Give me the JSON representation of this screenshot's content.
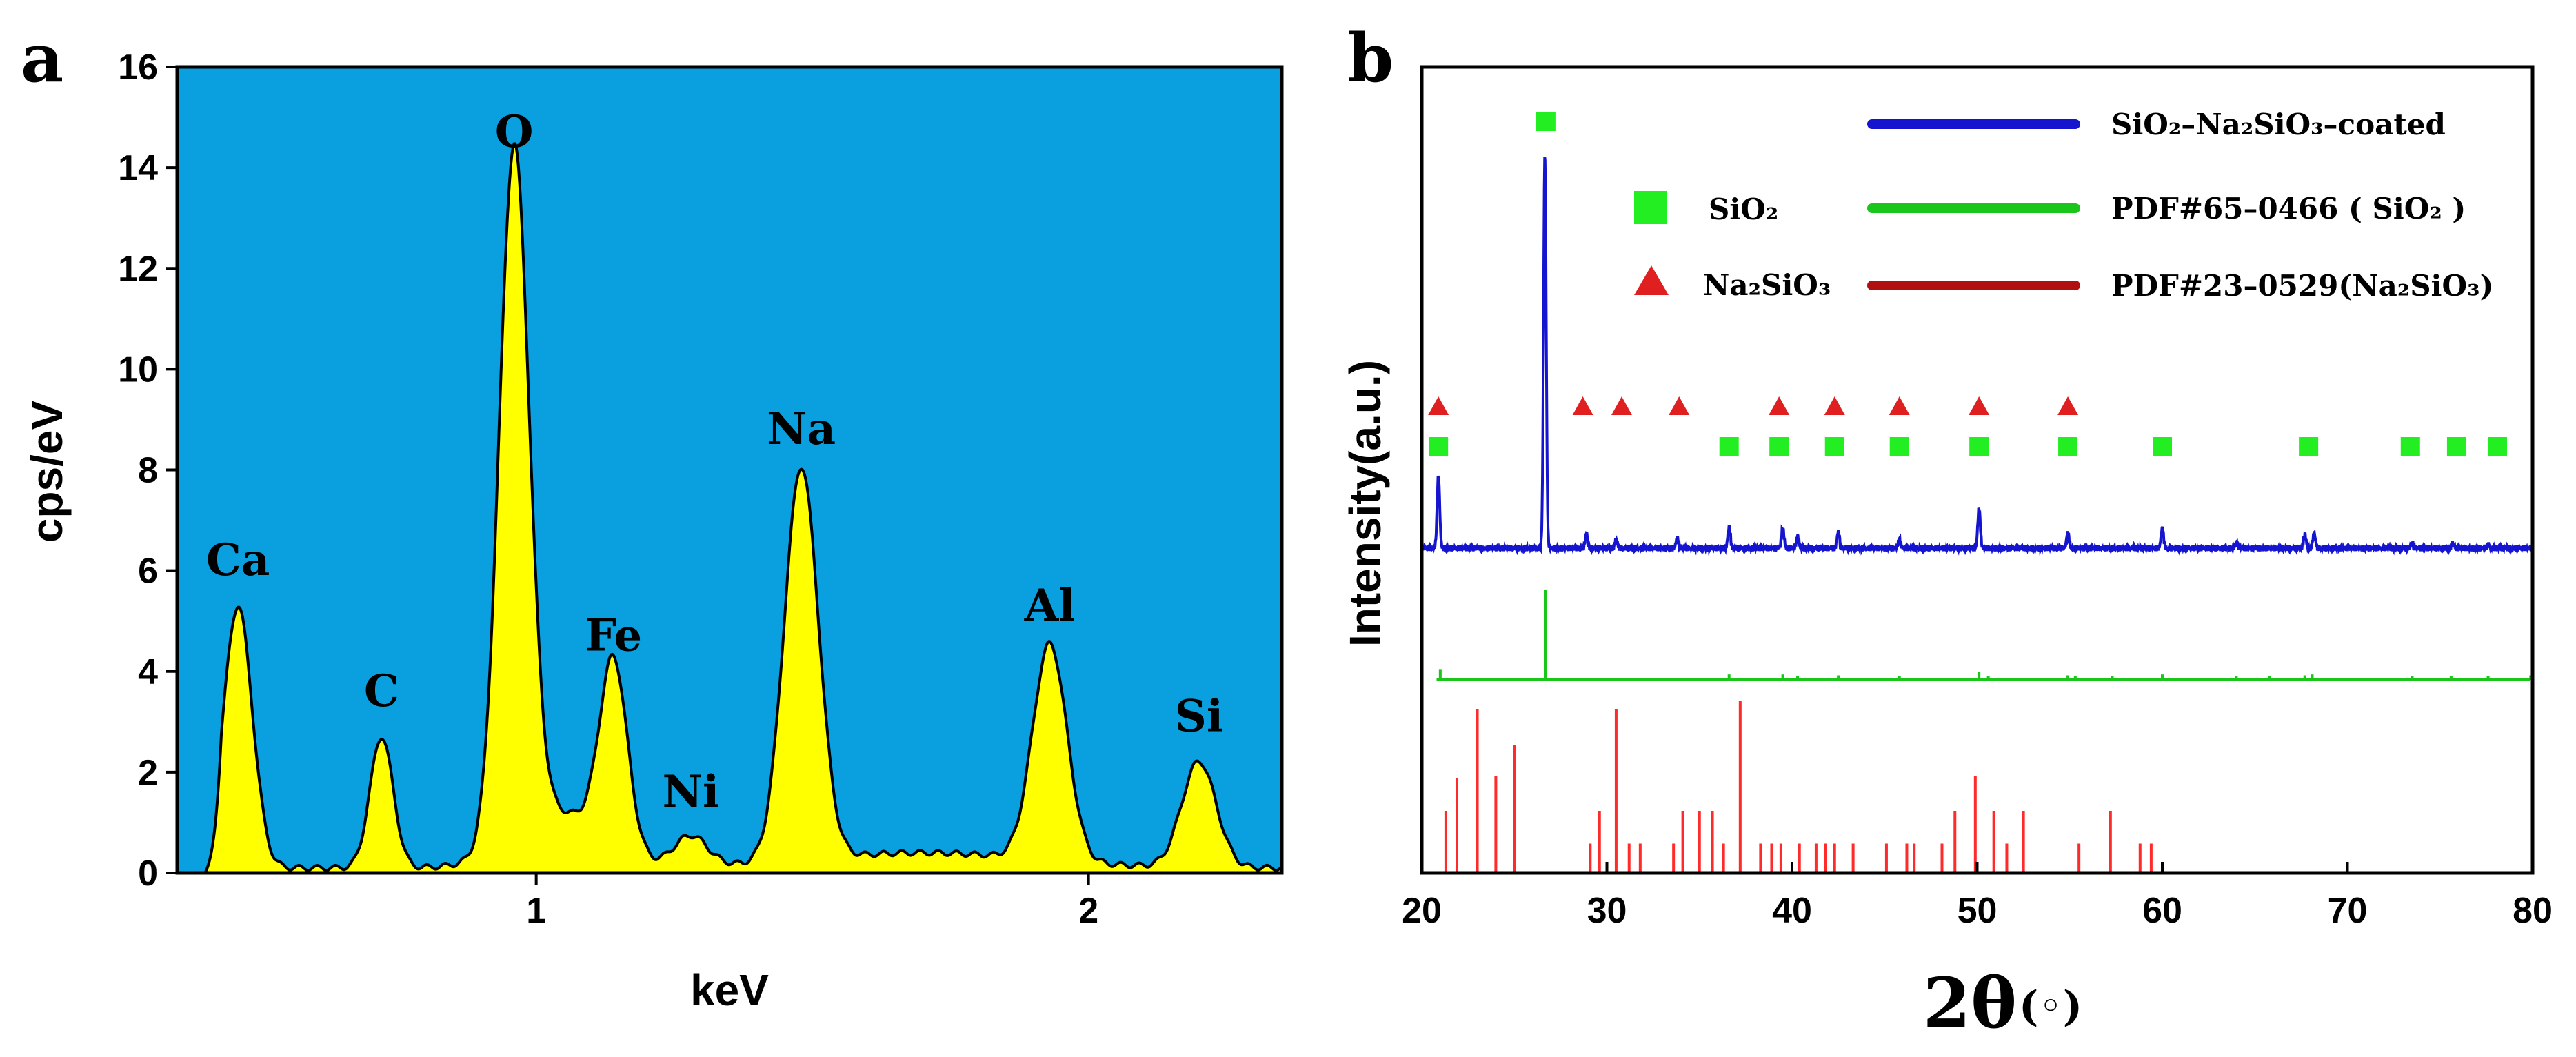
{
  "panel_a": {
    "letter": "a",
    "chart_data": {
      "type": "area",
      "xlabel": "keV",
      "ylabel": "cps/eV",
      "xlim": [
        0.35,
        2.35
      ],
      "ylim": [
        0,
        16
      ],
      "x_ticks": [
        1,
        2
      ],
      "y_ticks": [
        0,
        2,
        4,
        6,
        8,
        10,
        12,
        14,
        16
      ],
      "background_color": "#0aa0e0",
      "fill_color": "#ffff00",
      "baseline": 0.1,
      "peaks": [
        {
          "label": "Ca",
          "x": 0.46,
          "y": 5.2,
          "width": 0.026
        },
        {
          "label": "C",
          "x": 0.72,
          "y": 2.6,
          "width": 0.021
        },
        {
          "label": "O",
          "x": 0.96,
          "y": 13.7,
          "width": 0.027
        },
        {
          "label": "Fe",
          "x": 1.14,
          "y": 3.7,
          "width": 0.025
        },
        {
          "label": "Ni",
          "x": 1.28,
          "y": 0.6,
          "width": 0.03
        },
        {
          "label": "Na",
          "x": 1.48,
          "y": 7.8,
          "width": 0.031
        },
        {
          "label": "Al",
          "x": 1.93,
          "y": 4.3,
          "width": 0.031
        },
        {
          "label": "Si",
          "x": 2.2,
          "y": 2.1,
          "width": 0.031
        }
      ],
      "shoulders": [
        {
          "x": 1.04,
          "y": 1.1,
          "width": 0.08
        },
        {
          "x": 1.7,
          "y": 0.3,
          "width": 0.2
        }
      ]
    }
  },
  "panel_b": {
    "letter": "b",
    "chart_data": {
      "type": "line",
      "xlabel": "2θ",
      "xlabel_unit": "(◦)",
      "ylabel": "Intensity(a.u.)",
      "xlim": [
        20,
        80
      ],
      "x_ticks": [
        20,
        30,
        40,
        50,
        60,
        70,
        80
      ],
      "legend": [
        {
          "name": "SiO₂–Na₂SiO₃–coated",
          "color": "#1515d0"
        },
        {
          "name": "PDF#65–0466 ( SiO₂ )",
          "color": "#19c619"
        },
        {
          "name": "PDF#23–0529(Na₂SiO₃)",
          "color": "#b01010"
        }
      ],
      "marker_legend": [
        {
          "symbol": "square",
          "name": "SiO₂",
          "color": "#22ee22"
        },
        {
          "symbol": "triangle",
          "name": "Na₂SiO₃",
          "color": "#e02020"
        }
      ],
      "series": [
        {
          "name": "SiO₂–Na₂SiO₃–coated",
          "color": "#1515d0",
          "peaks": [
            {
              "x": 20.9,
              "h": 0.44
            },
            {
              "x": 26.65,
              "h": 2.4
            },
            {
              "x": 28.9,
              "h": 0.09
            },
            {
              "x": 30.5,
              "h": 0.05
            },
            {
              "x": 33.8,
              "h": 0.06
            },
            {
              "x": 36.6,
              "h": 0.13
            },
            {
              "x": 39.5,
              "h": 0.12
            },
            {
              "x": 40.3,
              "h": 0.07
            },
            {
              "x": 42.5,
              "h": 0.1
            },
            {
              "x": 45.8,
              "h": 0.05
            },
            {
              "x": 50.1,
              "h": 0.24
            },
            {
              "x": 54.9,
              "h": 0.09
            },
            {
              "x": 60.0,
              "h": 0.12
            },
            {
              "x": 64.0,
              "h": 0.03
            },
            {
              "x": 67.7,
              "h": 0.08
            },
            {
              "x": 68.2,
              "h": 0.09
            },
            {
              "x": 73.5,
              "h": 0.03
            },
            {
              "x": 75.7,
              "h": 0.03
            },
            {
              "x": 77.6,
              "h": 0.02
            }
          ]
        },
        {
          "name": "PDF#65–0466 ( SiO₂ )",
          "color": "#19c619",
          "sticks": [
            {
              "x": 21.0,
              "h": 12
            },
            {
              "x": 26.7,
              "h": 100
            },
            {
              "x": 36.6,
              "h": 6
            },
            {
              "x": 39.5,
              "h": 6
            },
            {
              "x": 40.3,
              "h": 4
            },
            {
              "x": 42.5,
              "h": 5
            },
            {
              "x": 45.8,
              "h": 4
            },
            {
              "x": 50.1,
              "h": 9
            },
            {
              "x": 50.6,
              "h": 4
            },
            {
              "x": 54.9,
              "h": 5
            },
            {
              "x": 55.3,
              "h": 4
            },
            {
              "x": 57.3,
              "h": 4
            },
            {
              "x": 60.0,
              "h": 6
            },
            {
              "x": 64.0,
              "h": 4
            },
            {
              "x": 65.8,
              "h": 4
            },
            {
              "x": 67.7,
              "h": 5
            },
            {
              "x": 68.1,
              "h": 6
            },
            {
              "x": 73.5,
              "h": 4
            },
            {
              "x": 75.6,
              "h": 4
            },
            {
              "x": 77.6,
              "h": 4
            },
            {
              "x": 79.9,
              "h": 5
            }
          ]
        },
        {
          "name": "PDF#23–0529(Na₂SiO₃)",
          "color": "#b01010",
          "stick_color": "#ff2a2a",
          "sticks": [
            {
              "x": 21.3,
              "h": 36
            },
            {
              "x": 21.9,
              "h": 55
            },
            {
              "x": 23.0,
              "h": 95
            },
            {
              "x": 24.0,
              "h": 56
            },
            {
              "x": 25.0,
              "h": 74
            },
            {
              "x": 29.1,
              "h": 17
            },
            {
              "x": 29.6,
              "h": 36
            },
            {
              "x": 30.5,
              "h": 95
            },
            {
              "x": 31.2,
              "h": 17
            },
            {
              "x": 31.8,
              "h": 17
            },
            {
              "x": 33.6,
              "h": 17
            },
            {
              "x": 34.1,
              "h": 36
            },
            {
              "x": 35.0,
              "h": 36
            },
            {
              "x": 35.7,
              "h": 36
            },
            {
              "x": 36.3,
              "h": 17
            },
            {
              "x": 37.2,
              "h": 100
            },
            {
              "x": 38.3,
              "h": 17
            },
            {
              "x": 38.9,
              "h": 17
            },
            {
              "x": 39.4,
              "h": 17
            },
            {
              "x": 40.4,
              "h": 17
            },
            {
              "x": 41.3,
              "h": 17
            },
            {
              "x": 41.8,
              "h": 17
            },
            {
              "x": 42.3,
              "h": 17
            },
            {
              "x": 43.3,
              "h": 17
            },
            {
              "x": 45.1,
              "h": 17
            },
            {
              "x": 46.2,
              "h": 17
            },
            {
              "x": 46.6,
              "h": 17
            },
            {
              "x": 48.1,
              "h": 17
            },
            {
              "x": 48.8,
              "h": 36
            },
            {
              "x": 49.9,
              "h": 56
            },
            {
              "x": 50.9,
              "h": 36
            },
            {
              "x": 51.6,
              "h": 17
            },
            {
              "x": 52.5,
              "h": 36
            },
            {
              "x": 55.5,
              "h": 17
            },
            {
              "x": 57.2,
              "h": 36
            },
            {
              "x": 58.8,
              "h": 17
            },
            {
              "x": 59.4,
              "h": 17
            }
          ]
        }
      ],
      "square_markers_x": [
        20.9,
        26.7,
        36.6,
        39.3,
        42.3,
        45.8,
        50.1,
        54.9,
        60.0,
        67.9,
        73.4,
        75.9,
        78.1
      ],
      "triangle_markers_x": [
        20.9,
        28.7,
        30.8,
        33.9,
        39.3,
        42.3,
        45.8,
        50.1,
        54.9
      ]
    }
  }
}
